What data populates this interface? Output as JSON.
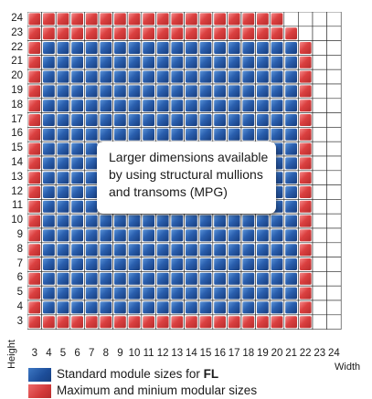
{
  "diagram": {
    "y_axis": {
      "label": "Height",
      "ticks": [
        "24",
        "23",
        "22",
        "21",
        "20",
        "19",
        "18",
        "17",
        "16",
        "15",
        "14",
        "13",
        "12",
        "11",
        "10",
        "9",
        "8",
        "7",
        "6",
        "5",
        "4",
        "3"
      ]
    },
    "x_axis": {
      "label": "Width",
      "ticks": [
        "3",
        "4",
        "5",
        "6",
        "7",
        "8",
        "9",
        "10",
        "11",
        "12",
        "13",
        "14",
        "15",
        "16",
        "17",
        "18",
        "19",
        "20",
        "21",
        "22",
        "23",
        "24"
      ]
    },
    "callout_text": "Larger dimensions available by using structural mullions and transoms (MPG)",
    "colors": {
      "standard": "#2b62b0",
      "max_min": "#e04848"
    },
    "cells": {
      "description_rows_top_to_bottom": [
        "R,R,R,R,R,R,R,R,R,R,R,R,R,R,R,R,R,R,_,_,_,_",
        "R,R,R,R,R,R,R,R,R,R,R,R,R,R,R,R,R,R,R,_,_,_",
        "R,B,B,B,B,B,B,B,B,B,B,B,B,B,B,B,B,B,B,B,_,_"
      ]
    }
  },
  "legend": {
    "standard": {
      "prefix": "Standard module sizes for ",
      "bold": "FL"
    },
    "max_min": {
      "label": "Maximum and minium modular sizes"
    }
  }
}
